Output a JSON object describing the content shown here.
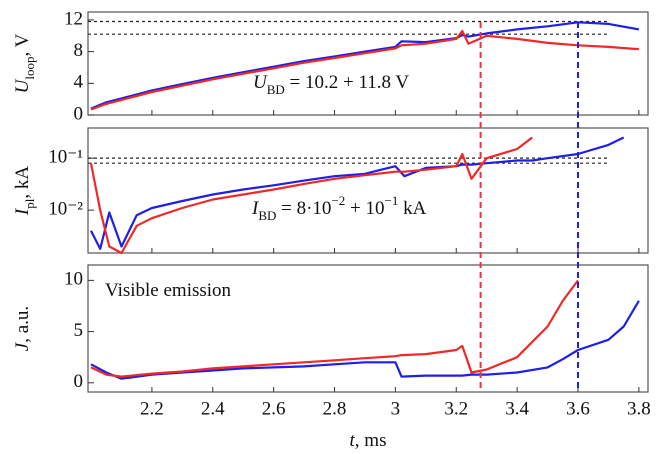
{
  "chart_data": [
    {
      "type": "line",
      "ylabel": [
        "U",
        "loop",
        ", V"
      ],
      "annotation": [
        "U",
        "BD",
        " = 10.2 + 11.8 V"
      ],
      "xlim": [
        1.99,
        3.83
      ],
      "ylim": [
        0,
        13
      ],
      "yticks": [
        0,
        4,
        8,
        12
      ],
      "hlines": [
        11.8,
        10.2
      ],
      "x": [
        2.0,
        2.05,
        2.1,
        2.2,
        2.3,
        2.4,
        2.5,
        2.6,
        2.7,
        2.8,
        2.9,
        3.0,
        3.02,
        3.1,
        3.2,
        3.22,
        3.24,
        3.3,
        3.4,
        3.5,
        3.6,
        3.7,
        3.8
      ],
      "series": [
        {
          "name": "blue",
          "color": "#1f1fe6",
          "values": [
            0.8,
            1.6,
            2.1,
            3.1,
            3.9,
            4.7,
            5.4,
            6.1,
            6.8,
            7.4,
            8.0,
            8.6,
            9.3,
            9.2,
            9.7,
            10.1,
            9.9,
            10.3,
            10.8,
            11.2,
            11.7,
            11.5,
            10.8
          ]
        },
        {
          "name": "red",
          "color": "#f02828",
          "values": [
            0.7,
            1.4,
            1.9,
            2.9,
            3.7,
            4.5,
            5.2,
            5.9,
            6.6,
            7.2,
            7.8,
            8.4,
            8.8,
            9.0,
            9.6,
            10.6,
            9.0,
            10.0,
            9.6,
            9.1,
            8.8,
            8.6,
            8.3
          ]
        }
      ]
    },
    {
      "type": "line",
      "log_y": true,
      "ylabel": [
        "I",
        "pl",
        ", kA"
      ],
      "annotation": [
        "I",
        "BD",
        " = 8·10",
        "−2",
        " + 10",
        "−1",
        " kA"
      ],
      "xlim": [
        1.99,
        3.83
      ],
      "ylim": [
        0.0015,
        0.38
      ],
      "yticks": [
        {
          "value": 0.01,
          "label": "10⁻²"
        },
        {
          "value": 0.1,
          "label": "10⁻¹"
        }
      ],
      "hlines": [
        0.1,
        0.08
      ],
      "x": [
        2.0,
        2.03,
        2.06,
        2.1,
        2.15,
        2.2,
        2.3,
        2.4,
        2.5,
        2.6,
        2.7,
        2.8,
        2.9,
        3.0,
        3.03,
        3.1,
        3.2,
        3.22,
        3.25,
        3.3,
        3.4,
        3.45,
        3.5,
        3.6,
        3.7,
        3.75
      ],
      "series": [
        {
          "name": "blue",
          "color": "#1f1fe6",
          "values": [
            0.004,
            0.0018,
            0.009,
            0.002,
            0.008,
            0.011,
            0.015,
            0.02,
            0.025,
            0.03,
            0.037,
            0.045,
            0.05,
            0.07,
            0.045,
            0.065,
            0.07,
            0.075,
            0.075,
            0.08,
            0.09,
            0.09,
            0.1,
            0.12,
            0.18,
            0.25
          ]
        },
        {
          "name": "red",
          "color": "#f02828",
          "values": [
            0.08,
            0.01,
            0.002,
            0.0015,
            0.005,
            0.007,
            0.011,
            0.016,
            0.02,
            0.025,
            0.032,
            0.04,
            0.047,
            0.055,
            0.055,
            0.06,
            0.07,
            0.12,
            0.04,
            0.1,
            0.15,
            0.25,
            null,
            null,
            null,
            null
          ]
        }
      ]
    },
    {
      "type": "line",
      "ylabel": [
        "J",
        "",
        ", a.u."
      ],
      "annotation": [
        "Visible emission"
      ],
      "xlim": [
        1.99,
        3.83
      ],
      "ylim": [
        -0.9,
        11.5
      ],
      "yticks": [
        0,
        5,
        10
      ],
      "xticks": [
        2.2,
        2.4,
        2.6,
        2.8,
        3.0,
        3.2,
        3.4,
        3.6,
        3.8
      ],
      "xlabel": [
        "t",
        ", ms"
      ],
      "vlines": [
        {
          "x": 3.28,
          "color": "#f0303a"
        },
        {
          "x": 3.6,
          "color": "#2020e0"
        }
      ],
      "x": [
        2.0,
        2.05,
        2.1,
        2.2,
        2.3,
        2.4,
        2.5,
        2.6,
        2.7,
        2.8,
        2.9,
        3.0,
        3.02,
        3.1,
        3.2,
        3.22,
        3.25,
        3.3,
        3.4,
        3.5,
        3.55,
        3.6,
        3.7,
        3.75,
        3.8
      ],
      "series": [
        {
          "name": "blue",
          "color": "#1f1fe6",
          "values": [
            1.8,
            1.0,
            0.4,
            0.8,
            1.0,
            1.2,
            1.4,
            1.5,
            1.6,
            1.8,
            2.0,
            2.0,
            0.6,
            0.7,
            0.7,
            0.7,
            0.8,
            0.8,
            1.0,
            1.5,
            2.3,
            3.2,
            4.2,
            5.5,
            8.0
          ]
        },
        {
          "name": "red",
          "color": "#f02828",
          "values": [
            1.5,
            0.8,
            0.6,
            0.9,
            1.1,
            1.4,
            1.6,
            1.8,
            2.0,
            2.2,
            2.4,
            2.6,
            2.7,
            2.8,
            3.2,
            3.6,
            1.0,
            1.3,
            2.5,
            5.5,
            8.0,
            10.0,
            null,
            null,
            null
          ]
        }
      ]
    }
  ]
}
